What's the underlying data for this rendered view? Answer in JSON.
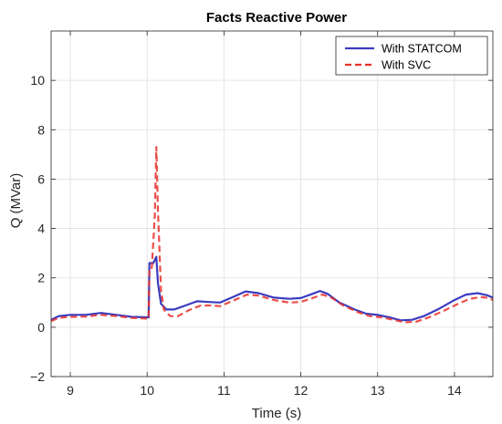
{
  "chart_data": {
    "type": "line",
    "title": "Facts Reactive Power",
    "xlabel": "Time (s)",
    "ylabel": "Q (MVar)",
    "xlim": [
      8.75,
      14.5
    ],
    "ylim": [
      -2,
      12
    ],
    "xticks": [
      9,
      10,
      11,
      12,
      13,
      14
    ],
    "yticks": [
      -2,
      0,
      2,
      4,
      6,
      8,
      10
    ],
    "grid": true,
    "legend_position": "top-right",
    "series": [
      {
        "name": "With STATCOM",
        "color": "#3b3bbf",
        "style": "solid",
        "points": [
          [
            8.75,
            0.3
          ],
          [
            8.85,
            0.45
          ],
          [
            9.0,
            0.5
          ],
          [
            9.2,
            0.5
          ],
          [
            9.4,
            0.58
          ],
          [
            9.6,
            0.5
          ],
          [
            9.8,
            0.42
          ],
          [
            10.0,
            0.4
          ],
          [
            10.02,
            0.4
          ],
          [
            10.03,
            2.6
          ],
          [
            10.08,
            2.6
          ],
          [
            10.12,
            2.85
          ],
          [
            10.14,
            1.8
          ],
          [
            10.18,
            0.95
          ],
          [
            10.25,
            0.72
          ],
          [
            10.35,
            0.72
          ],
          [
            10.5,
            0.88
          ],
          [
            10.65,
            1.05
          ],
          [
            10.8,
            1.02
          ],
          [
            10.95,
            1.0
          ],
          [
            11.1,
            1.2
          ],
          [
            11.28,
            1.45
          ],
          [
            11.45,
            1.38
          ],
          [
            11.65,
            1.2
          ],
          [
            11.85,
            1.15
          ],
          [
            12.0,
            1.18
          ],
          [
            12.15,
            1.35
          ],
          [
            12.25,
            1.47
          ],
          [
            12.35,
            1.35
          ],
          [
            12.5,
            1.0
          ],
          [
            12.7,
            0.72
          ],
          [
            12.85,
            0.55
          ],
          [
            13.0,
            0.5
          ],
          [
            13.15,
            0.4
          ],
          [
            13.3,
            0.28
          ],
          [
            13.45,
            0.3
          ],
          [
            13.6,
            0.45
          ],
          [
            13.8,
            0.75
          ],
          [
            14.0,
            1.1
          ],
          [
            14.15,
            1.32
          ],
          [
            14.3,
            1.38
          ],
          [
            14.42,
            1.3
          ],
          [
            14.5,
            1.2
          ]
        ]
      },
      {
        "name": "With SVC",
        "color": "#e8302a",
        "style": "dashed",
        "points": [
          [
            8.75,
            0.25
          ],
          [
            8.85,
            0.38
          ],
          [
            9.0,
            0.42
          ],
          [
            9.2,
            0.43
          ],
          [
            9.4,
            0.5
          ],
          [
            9.6,
            0.45
          ],
          [
            9.8,
            0.38
          ],
          [
            10.0,
            0.35
          ],
          [
            10.02,
            0.35
          ],
          [
            10.03,
            2.4
          ],
          [
            10.06,
            2.4
          ],
          [
            10.1,
            4.5
          ],
          [
            10.12,
            7.3
          ],
          [
            10.14,
            4.8
          ],
          [
            10.18,
            1.5
          ],
          [
            10.22,
            0.7
          ],
          [
            10.3,
            0.45
          ],
          [
            10.4,
            0.45
          ],
          [
            10.55,
            0.7
          ],
          [
            10.7,
            0.88
          ],
          [
            10.85,
            0.88
          ],
          [
            10.95,
            0.85
          ],
          [
            11.1,
            1.05
          ],
          [
            11.3,
            1.32
          ],
          [
            11.45,
            1.28
          ],
          [
            11.65,
            1.1
          ],
          [
            11.85,
            1.0
          ],
          [
            12.0,
            1.02
          ],
          [
            12.15,
            1.18
          ],
          [
            12.28,
            1.32
          ],
          [
            12.4,
            1.2
          ],
          [
            12.55,
            0.88
          ],
          [
            12.75,
            0.6
          ],
          [
            12.9,
            0.45
          ],
          [
            13.05,
            0.4
          ],
          [
            13.2,
            0.3
          ],
          [
            13.35,
            0.2
          ],
          [
            13.5,
            0.22
          ],
          [
            13.65,
            0.38
          ],
          [
            13.85,
            0.65
          ],
          [
            14.05,
            0.95
          ],
          [
            14.2,
            1.15
          ],
          [
            14.35,
            1.22
          ],
          [
            14.45,
            1.18
          ],
          [
            14.5,
            1.1
          ]
        ]
      }
    ]
  }
}
